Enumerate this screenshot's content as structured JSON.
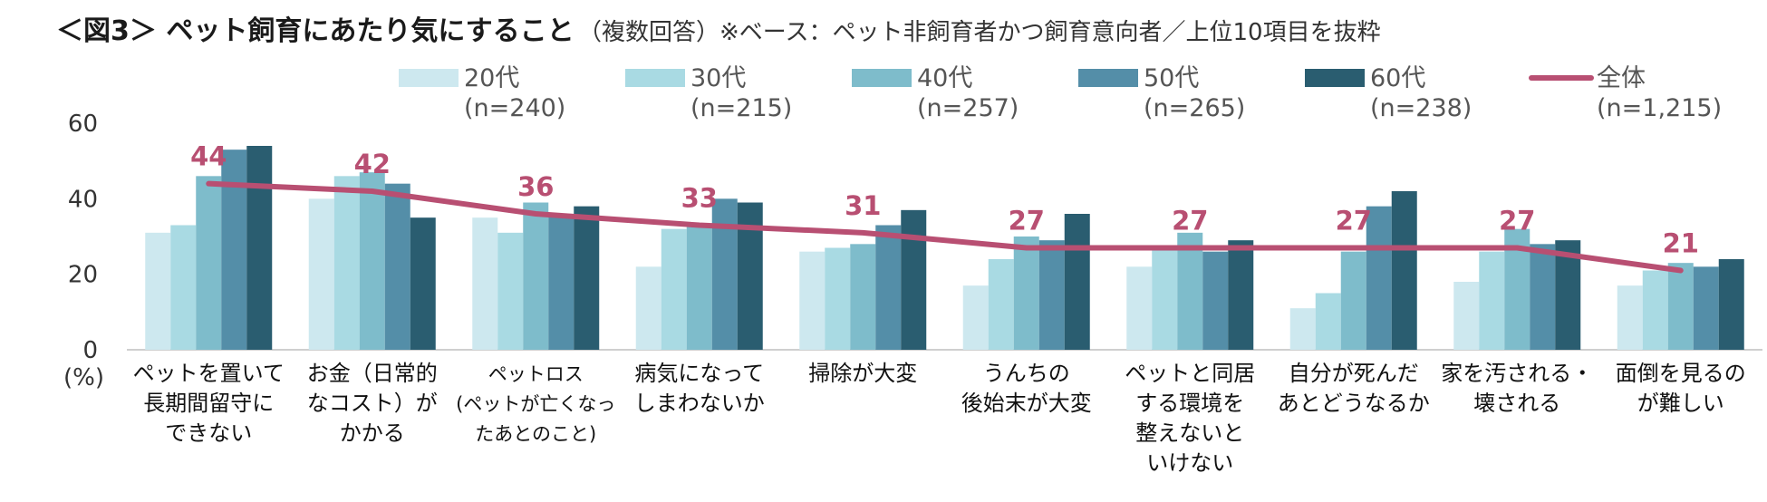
{
  "chart_data": {
    "type": "bar",
    "title": "＜図3＞ ペット飼育にあたり気にすること",
    "subtitle": "（複数回答）※ベース：ペット非飼育者かつ飼育意向者／上位10項目を抜粋",
    "unit_label": "(%)",
    "ylim": [
      0,
      60
    ],
    "yticks": [
      "0",
      "20",
      "40",
      "60"
    ],
    "categories": [
      [
        "ペットを置いて",
        "長期間留守に",
        "できない"
      ],
      [
        "お金（日常的",
        "なコスト）が",
        "かかる"
      ],
      [
        "ペットロス",
        "(ペットが亡くなっ",
        "たあとのこと)"
      ],
      [
        "病気になって",
        "しまわないか"
      ],
      [
        "掃除が大変"
      ],
      [
        "うんちの",
        "後始末が大変"
      ],
      [
        "ペットと同居",
        "する環境を",
        "整えないと",
        "いけない"
      ],
      [
        "自分が死んだ",
        "あとどうなるか"
      ],
      [
        "家を汚される・",
        "壊される"
      ],
      [
        "面倒を見るの",
        "が難しい"
      ]
    ],
    "series": [
      {
        "name": "20代",
        "n": "(n=240)",
        "color": "#cde8ef",
        "values": [
          31,
          40,
          35,
          22,
          26,
          17,
          22,
          11,
          18,
          17
        ]
      },
      {
        "name": "30代",
        "n": "(n=215)",
        "color": "#a9dae3",
        "values": [
          33,
          46,
          31,
          32,
          27,
          24,
          27,
          15,
          26,
          21
        ]
      },
      {
        "name": "40代",
        "n": "(n=257)",
        "color": "#7ebccb",
        "values": [
          46,
          47,
          39,
          33,
          28,
          30,
          31,
          26,
          32,
          23
        ]
      },
      {
        "name": "50代",
        "n": "(n=265)",
        "color": "#548ea8",
        "values": [
          53,
          44,
          36,
          40,
          33,
          29,
          26,
          38,
          28,
          22
        ]
      },
      {
        "name": "60代",
        "n": "(n=238)",
        "color": "#2a5d70",
        "values": [
          54,
          35,
          38,
          39,
          37,
          36,
          29,
          42,
          29,
          24
        ]
      }
    ],
    "line": {
      "name": "全体",
      "n": "(n=1,215)",
      "color": "#b84f72",
      "values": [
        44,
        42,
        36,
        33,
        31,
        27,
        27,
        27,
        27,
        21
      ],
      "labels": [
        "44",
        "42",
        "36",
        "33",
        "31",
        "27",
        "27",
        "27",
        "27",
        "21"
      ]
    }
  }
}
